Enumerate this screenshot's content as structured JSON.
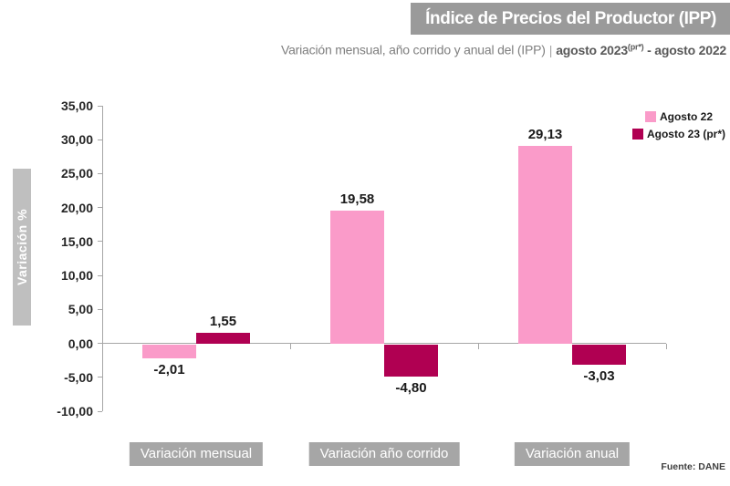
{
  "header": {
    "title": "Índice de Precios del Productor (IPP)",
    "subtitle_regular": "Variación mensual, año corrido y anual del (IPP)",
    "subtitle_separator": "|",
    "period_bold": "agosto 2023",
    "period_sup": "(pr*)",
    "period_rest": " - agosto 2022"
  },
  "chart_data": {
    "type": "bar",
    "title": "Índice de Precios del Productor (IPP)",
    "subtitle": "Variación mensual, año corrido y anual del (IPP) | agosto 2023(pr*) - agosto 2022",
    "categories": [
      "Variación mensual",
      "Variación año corrido",
      "Variación anual"
    ],
    "series": [
      {
        "name": "Agosto 22",
        "color": "#FA9BC9",
        "values": [
          -2.01,
          19.58,
          29.13
        ],
        "labels": [
          "-2,01",
          "19,58",
          "29,13"
        ]
      },
      {
        "name": "Agosto 23 (pr*)",
        "color": "#B00052",
        "values": [
          1.55,
          -4.8,
          -3.03
        ],
        "labels": [
          "1,55",
          "-4,80",
          "-3,03"
        ]
      }
    ],
    "xlabel": "",
    "ylabel": "Variación %",
    "ylim": [
      -10,
      35
    ],
    "ytick_step": 5,
    "ytick_labels": [
      "35,00",
      "30,00",
      "25,00",
      "20,00",
      "15,00",
      "10,00",
      "5,00",
      "0,00",
      "-5,00",
      "-10,00"
    ],
    "legend_position": "top-right",
    "grid": false
  },
  "footer": {
    "source": "Fuente: DANE"
  },
  "colors": {
    "banner_bg": "#9A9A9A",
    "banner_text": "#FFFFFF",
    "subtitle_regular": "#7F7F7F",
    "subtitle_bold": "#595959",
    "category_box_bg": "#A6A6A6",
    "ylabel_box_bg": "#BFBFBF",
    "axis_line": "#A6A6A6",
    "tick_label": "#262626",
    "data_label": "#1A1A1A",
    "series_agosto_22": "#FA9BC9",
    "series_agosto_23": "#B00052"
  }
}
